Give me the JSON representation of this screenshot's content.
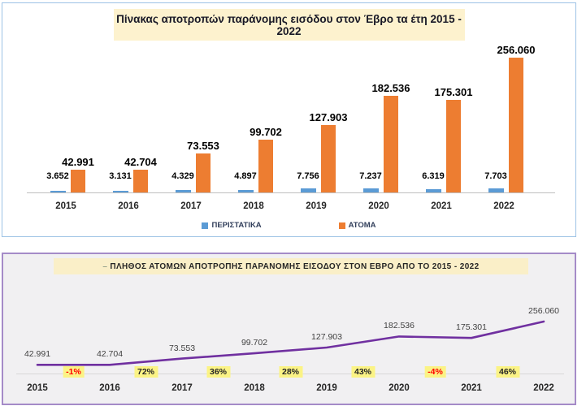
{
  "top_chart": {
    "title": "Πίνακας αποτροπών παράνομης εισόδου στον Έβρο τα έτη 2015 - 2022",
    "title_bg": "#FDF2CE",
    "border_color": "#9CC2E5"
  },
  "bottom_chart": {
    "marker": "–",
    "title": "ΠΛΗΘΟΣ ΑΤΟΜΩΝ ΑΠΟΤΡΟΠΗΣ ΠΑΡΑΝΟΜΗΣ ΕΙΣΟΔΟΥ ΣΤΟΝ ΕΒΡΟ  ΑΠΟ ΤΟ   2015   -   2022",
    "title_bg": "#FAEFC8",
    "border_color": "#A58BC8",
    "plot_bg": "#F1F0F2"
  },
  "chart_data": [
    {
      "type": "bar",
      "title": "Πίνακας αποτροπών παράνομης εισόδου στον Έβρο τα έτη 2015 - 2022",
      "categories": [
        "2015",
        "2016",
        "2017",
        "2018",
        "2019",
        "2020",
        "2021",
        "2022"
      ],
      "series": [
        {
          "name": "ΠΕΡΙΣΤΑΤΙΚΑ",
          "color": "#5B9BD5",
          "values": [
            3652,
            3131,
            4329,
            4897,
            7756,
            7237,
            6319,
            7703
          ],
          "labels": [
            "3.652",
            "3.131",
            "4.329",
            "4.897",
            "7.756",
            "7.237",
            "6.319",
            "7.703"
          ]
        },
        {
          "name": "ΑΤΟΜΑ",
          "color": "#ED7D31",
          "values": [
            42991,
            42704,
            73553,
            99702,
            127903,
            182536,
            175301,
            256060
          ],
          "labels": [
            "42.991",
            "42.704",
            "73.553",
            "99.702",
            "127.903",
            "182.536",
            "175.301",
            "256.060"
          ]
        }
      ],
      "ylim": [
        0,
        256060
      ],
      "grid": false,
      "legend_position": "bottom"
    },
    {
      "type": "line",
      "title": "ΠΛΗΘΟΣ ΑΤΟΜΩΝ ΑΠΟΤΡΟΠΗΣ ΠΑΡΑΝΟΜΗΣ ΕΙΣΟΔΟΥ ΣΤΟΝ ΕΒΡΟ ΑΠΟ ΤΟ 2015 - 2022",
      "categories": [
        "2015",
        "2016",
        "2017",
        "2018",
        "2019",
        "2020",
        "2021",
        "2022"
      ],
      "values": [
        42991,
        42704,
        73553,
        99702,
        127903,
        182536,
        175301,
        256060
      ],
      "labels": [
        "42.991",
        "42.704",
        "73.553",
        "99.702",
        "127.903",
        "182.536",
        "175.301",
        "256.060"
      ],
      "pct_changes": [
        {
          "label": "-1%",
          "negative": true
        },
        {
          "label": "72%",
          "negative": false
        },
        {
          "label": "36%",
          "negative": false
        },
        {
          "label": "28%",
          "negative": false
        },
        {
          "label": "43%",
          "negative": false
        },
        {
          "label": "-4%",
          "negative": true
        },
        {
          "label": "46%",
          "negative": false
        }
      ],
      "line_color": "#7030A0",
      "pct_negative_color": "#FF0000",
      "pct_positive_color": "#262626",
      "grid": false,
      "ylim": [
        0,
        256060
      ]
    }
  ]
}
